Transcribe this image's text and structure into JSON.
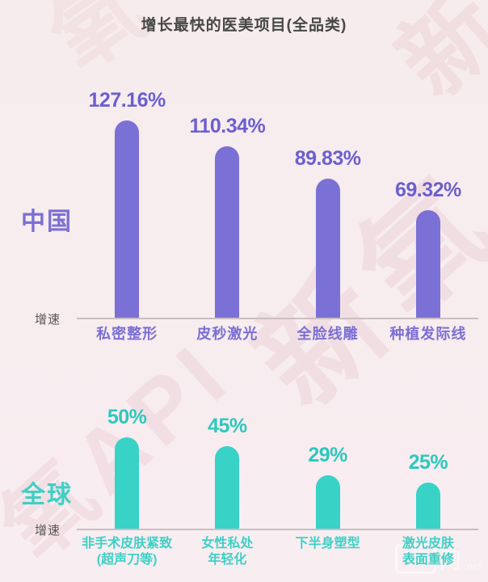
{
  "title": "增长最快的医美项目(全品类)",
  "watermark": {
    "fragments": [
      "新氧",
      "氧API",
      "新",
      "氧"
    ],
    "logo": {
      "box_text": "VB",
      "site_text": "网",
      "suffix": ".net"
    }
  },
  "chart_data": [
    {
      "type": "bar",
      "region_label": "中国",
      "axis_label": "增速",
      "categories": [
        "私密整形",
        "皮秒激光",
        "全脸线雕",
        "种植发际线"
      ],
      "values": [
        127.16,
        110.34,
        89.83,
        69.32
      ],
      "value_labels": [
        "127.16%",
        "110.34%",
        "89.83%",
        "69.32%"
      ],
      "bar_color": "#7b70d6",
      "value_color": "#6c5fcf",
      "xlabel_color": "#7b6fd4",
      "region_color": "#7b6fd4",
      "ylim": [
        0,
        150
      ],
      "grid": false,
      "legend": "none"
    },
    {
      "type": "bar",
      "region_label": "全球",
      "axis_label": "增速",
      "categories": [
        "非手术皮肤紧致\n(超声刀等)",
        "女性私处\n年轻化",
        "下半身塑型",
        "激光皮肤\n表面重修"
      ],
      "values": [
        50,
        45,
        29,
        25
      ],
      "value_labels": [
        "50%",
        "45%",
        "29%",
        "25%"
      ],
      "bar_color": "#38d2c6",
      "value_color": "#2ec8bd",
      "xlabel_color": "#3fd0c5",
      "region_color": "#3fd0c5",
      "ylim": [
        0,
        72
      ],
      "grid": false,
      "legend": "none"
    }
  ]
}
